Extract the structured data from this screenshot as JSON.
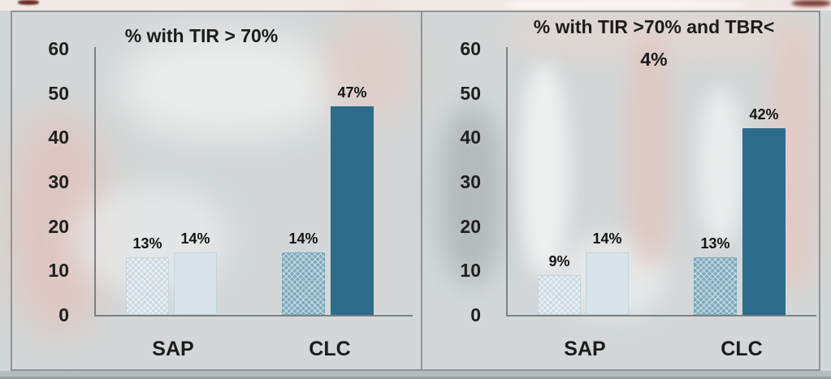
{
  "colors": {
    "sap_hatched_bar": "#e9eef2",
    "sap_solid_bar": "#d8e4ea",
    "clc_hatched_bar": "#7ea9bc",
    "clc_solid_bar": "#2d6c8b",
    "axis": "#7a8284",
    "panel_border": "#8e9494",
    "text": "#1c1c1c"
  },
  "chart_data": [
    {
      "type": "bar",
      "title": "% with TIR > 70%",
      "title_lines": [
        "% with TIR > 70%"
      ],
      "categories": [
        "SAP",
        "CLC"
      ],
      "series": [
        {
          "name": "hatched",
          "values": [
            13,
            14
          ]
        },
        {
          "name": "solid",
          "values": [
            14,
            47
          ]
        }
      ],
      "bar_labels": [
        "13%",
        "14%",
        "14%",
        "47%"
      ],
      "xlabel": "",
      "ylabel": "",
      "ylim": [
        0,
        60
      ],
      "yticks": [
        0,
        10,
        20,
        30,
        40,
        50,
        60
      ],
      "grid": false,
      "legend": "none"
    },
    {
      "type": "bar",
      "title": "% with TIR >70% and TBR< 4%",
      "title_lines": [
        "% with TIR >70% and TBR<",
        "4%"
      ],
      "categories": [
        "SAP",
        "CLC"
      ],
      "series": [
        {
          "name": "hatched",
          "values": [
            9,
            13
          ]
        },
        {
          "name": "solid",
          "values": [
            14,
            42
          ]
        }
      ],
      "bar_labels": [
        "9%",
        "14%",
        "13%",
        "42%"
      ],
      "xlabel": "",
      "ylabel": "",
      "ylim": [
        0,
        60
      ],
      "yticks": [
        0,
        10,
        20,
        30,
        40,
        50,
        60
      ],
      "grid": false,
      "legend": "none"
    }
  ]
}
